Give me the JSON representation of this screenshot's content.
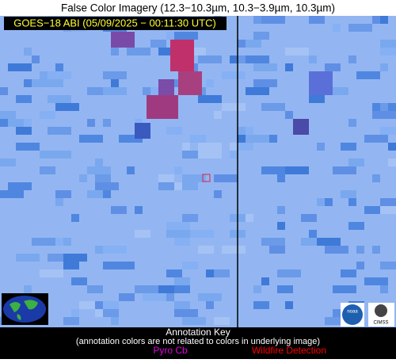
{
  "header": {
    "title": "False Color Imagery (12.3−10.3µm, 10.3−3.9µm, 10.3µm)"
  },
  "image": {
    "timestamp_label": "GOES−18 ABI (05/09/2025 − 00:11:30 UTC)"
  },
  "annotation_key": {
    "title": "Annotation Key",
    "note": "(annotation colors are not related to colors in underlying image)",
    "items": [
      "Pyro Cb",
      "Wildfire Detection"
    ]
  },
  "logos": {
    "noaa": "noaa",
    "cimss": "CIMSS"
  }
}
